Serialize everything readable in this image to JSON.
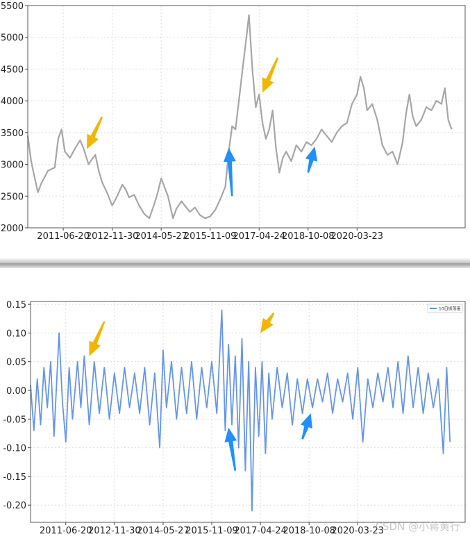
{
  "colors": {
    "top_line": "#a6a6a6",
    "bottom_line": "#6495ed",
    "arrow_orange": "#f5b400",
    "arrow_blue": "#1e90ff",
    "grid": "#dcdcdc"
  },
  "watermark": "CSDN @小蒋黄行",
  "chart_data": [
    {
      "type": "line",
      "x_tick_labels": [
        "2011-06-20",
        "2012-11-30",
        "2014-05-27",
        "2015-11-09",
        "2017-04-24",
        "2018-10-08",
        "2020-03-23"
      ],
      "ylim": [
        2000,
        5500
      ],
      "y_ticks": [
        2000,
        2500,
        3000,
        3500,
        4000,
        4500,
        5000,
        5500
      ],
      "grid": true,
      "series": [
        {
          "values": [
            [
              2010.0,
              3450
            ],
            [
              2010.1,
              3050
            ],
            [
              2010.2,
              2800
            ],
            [
              2010.3,
              2560
            ],
            [
              2010.4,
              2700
            ],
            [
              2010.6,
              2900
            ],
            [
              2010.8,
              2950
            ],
            [
              2010.9,
              3400
            ],
            [
              2011.0,
              3550
            ],
            [
              2011.1,
              3200
            ],
            [
              2011.25,
              3100
            ],
            [
              2011.4,
              3250
            ],
            [
              2011.55,
              3380
            ],
            [
              2011.65,
              3250
            ],
            [
              2011.8,
              3000
            ],
            [
              2011.9,
              3080
            ],
            [
              2012.0,
              3150
            ],
            [
              2012.1,
              2900
            ],
            [
              2012.2,
              2720
            ],
            [
              2012.35,
              2550
            ],
            [
              2012.5,
              2350
            ],
            [
              2012.65,
              2500
            ],
            [
              2012.8,
              2680
            ],
            [
              2012.9,
              2600
            ],
            [
              2013.0,
              2480
            ],
            [
              2013.15,
              2520
            ],
            [
              2013.3,
              2350
            ],
            [
              2013.45,
              2220
            ],
            [
              2013.6,
              2150
            ],
            [
              2013.75,
              2380
            ],
            [
              2013.85,
              2560
            ],
            [
              2013.95,
              2780
            ],
            [
              2014.05,
              2640
            ],
            [
              2014.15,
              2500
            ],
            [
              2014.3,
              2150
            ],
            [
              2014.4,
              2300
            ],
            [
              2014.55,
              2420
            ],
            [
              2014.65,
              2350
            ],
            [
              2014.8,
              2250
            ],
            [
              2014.95,
              2320
            ],
            [
              2015.1,
              2200
            ],
            [
              2015.25,
              2150
            ],
            [
              2015.4,
              2180
            ],
            [
              2015.55,
              2280
            ],
            [
              2015.7,
              2450
            ],
            [
              2015.85,
              2650
            ],
            [
              2015.95,
              3200
            ],
            [
              2016.05,
              3600
            ],
            [
              2016.15,
              3550
            ],
            [
              2016.25,
              4000
            ],
            [
              2016.35,
              4450
            ],
            [
              2016.45,
              4900
            ],
            [
              2016.55,
              5350
            ],
            [
              2016.65,
              4500
            ],
            [
              2016.75,
              3900
            ],
            [
              2016.85,
              4100
            ],
            [
              2016.95,
              3650
            ],
            [
              2017.05,
              3400
            ],
            [
              2017.15,
              3550
            ],
            [
              2017.25,
              3850
            ],
            [
              2017.35,
              3250
            ],
            [
              2017.45,
              2870
            ],
            [
              2017.55,
              3100
            ],
            [
              2017.65,
              3200
            ],
            [
              2017.8,
              3050
            ],
            [
              2017.95,
              3300
            ],
            [
              2018.1,
              3200
            ],
            [
              2018.25,
              3350
            ],
            [
              2018.4,
              3300
            ],
            [
              2018.55,
              3400
            ],
            [
              2018.7,
              3550
            ],
            [
              2018.85,
              3450
            ],
            [
              2019.0,
              3350
            ],
            [
              2019.15,
              3500
            ],
            [
              2019.3,
              3600
            ],
            [
              2019.45,
              3650
            ],
            [
              2019.6,
              3950
            ],
            [
              2019.75,
              4100
            ],
            [
              2019.85,
              4380
            ],
            [
              2019.95,
              4200
            ],
            [
              2020.05,
              3850
            ],
            [
              2020.2,
              3950
            ],
            [
              2020.35,
              3700
            ],
            [
              2020.5,
              3300
            ],
            [
              2020.65,
              3150
            ],
            [
              2020.8,
              3200
            ],
            [
              2020.95,
              3000
            ],
            [
              2021.1,
              3350
            ],
            [
              2021.2,
              3800
            ],
            [
              2021.3,
              4100
            ],
            [
              2021.4,
              3750
            ],
            [
              2021.5,
              3600
            ],
            [
              2021.65,
              3700
            ],
            [
              2021.8,
              3900
            ],
            [
              2021.95,
              3850
            ],
            [
              2022.1,
              4000
            ],
            [
              2022.25,
              3950
            ],
            [
              2022.35,
              4200
            ],
            [
              2022.45,
              3700
            ],
            [
              2022.55,
              3550
            ]
          ]
        }
      ],
      "annotations": [
        {
          "type": "arrow",
          "color": "orange",
          "from": [
            2012.2,
            3750
          ],
          "to": [
            2011.75,
            3240
          ]
        },
        {
          "type": "arrow",
          "color": "orange",
          "from": [
            2017.4,
            4680
          ],
          "to": [
            2016.95,
            4130
          ]
        },
        {
          "type": "arrow",
          "color": "blue",
          "from": [
            2016.05,
            2500
          ],
          "to": [
            2015.95,
            3260
          ]
        },
        {
          "type": "arrow",
          "color": "blue",
          "from": [
            2018.3,
            2870
          ],
          "to": [
            2018.5,
            3280
          ]
        }
      ]
    },
    {
      "type": "line",
      "x_tick_labels": [
        "2011-06-20",
        "2012-11-30",
        "2014-05-27",
        "2015-11-09",
        "2017-04-24",
        "2018-10-08",
        "2020-03-23"
      ],
      "ylim": [
        -0.23,
        0.155
      ],
      "y_ticks": [
        -0.2,
        -0.15,
        -0.1,
        -0.05,
        0.0,
        0.05,
        0.1,
        0.15
      ],
      "grid": true,
      "legend": {
        "position": "top-right",
        "entries": [
          "10日振荡度"
        ]
      },
      "series": [
        {
          "name": "10日振荡度",
          "values": [
            [
              2010.0,
              0.01
            ],
            [
              2010.1,
              -0.07
            ],
            [
              2010.2,
              0.02
            ],
            [
              2010.3,
              -0.06
            ],
            [
              2010.4,
              0.04
            ],
            [
              2010.5,
              -0.03
            ],
            [
              2010.6,
              0.05
            ],
            [
              2010.7,
              -0.08
            ],
            [
              2010.85,
              0.1
            ],
            [
              2010.95,
              -0.02
            ],
            [
              2011.05,
              -0.09
            ],
            [
              2011.15,
              0.04
            ],
            [
              2011.25,
              -0.05
            ],
            [
              2011.4,
              0.05
            ],
            [
              2011.5,
              -0.03
            ],
            [
              2011.6,
              0.06
            ],
            [
              2011.75,
              -0.06
            ],
            [
              2011.9,
              0.05
            ],
            [
              2012.05,
              -0.04
            ],
            [
              2012.2,
              0.04
            ],
            [
              2012.35,
              -0.05
            ],
            [
              2012.5,
              0.03
            ],
            [
              2012.65,
              -0.04
            ],
            [
              2012.8,
              0.04
            ],
            [
              2012.95,
              -0.03
            ],
            [
              2013.1,
              0.03
            ],
            [
              2013.25,
              -0.04
            ],
            [
              2013.4,
              0.04
            ],
            [
              2013.55,
              -0.06
            ],
            [
              2013.7,
              0.03
            ],
            [
              2013.85,
              -0.1
            ],
            [
              2013.95,
              0.07
            ],
            [
              2014.05,
              -0.03
            ],
            [
              2014.2,
              0.05
            ],
            [
              2014.35,
              -0.05
            ],
            [
              2014.5,
              0.04
            ],
            [
              2014.65,
              -0.04
            ],
            [
              2014.8,
              0.05
            ],
            [
              2014.95,
              -0.05
            ],
            [
              2015.1,
              0.04
            ],
            [
              2015.25,
              -0.03
            ],
            [
              2015.4,
              0.05
            ],
            [
              2015.55,
              -0.04
            ],
            [
              2015.7,
              0.14
            ],
            [
              2015.8,
              -0.07
            ],
            [
              2015.9,
              0.08
            ],
            [
              2016.0,
              -0.06
            ],
            [
              2016.1,
              0.06
            ],
            [
              2016.2,
              -0.1
            ],
            [
              2016.3,
              0.09
            ],
            [
              2016.4,
              -0.14
            ],
            [
              2016.5,
              0.05
            ],
            [
              2016.6,
              -0.21
            ],
            [
              2016.7,
              0.04
            ],
            [
              2016.8,
              -0.08
            ],
            [
              2016.9,
              0.05
            ],
            [
              2017.0,
              -0.11
            ],
            [
              2017.1,
              0.03
            ],
            [
              2017.2,
              -0.05
            ],
            [
              2017.35,
              0.04
            ],
            [
              2017.5,
              -0.03
            ],
            [
              2017.65,
              0.03
            ],
            [
              2017.8,
              -0.06
            ],
            [
              2017.95,
              0.02
            ],
            [
              2018.1,
              -0.04
            ],
            [
              2018.25,
              0.02
            ],
            [
              2018.4,
              -0.03
            ],
            [
              2018.55,
              0.02
            ],
            [
              2018.7,
              -0.02
            ],
            [
              2018.85,
              0.03
            ],
            [
              2019.0,
              -0.04
            ],
            [
              2019.15,
              0.02
            ],
            [
              2019.3,
              -0.02
            ],
            [
              2019.45,
              0.03
            ],
            [
              2019.6,
              -0.05
            ],
            [
              2019.75,
              0.04
            ],
            [
              2019.9,
              -0.09
            ],
            [
              2020.05,
              0.02
            ],
            [
              2020.2,
              -0.03
            ],
            [
              2020.35,
              0.03
            ],
            [
              2020.5,
              -0.02
            ],
            [
              2020.65,
              0.04
            ],
            [
              2020.8,
              -0.03
            ],
            [
              2020.95,
              0.05
            ],
            [
              2021.1,
              -0.04
            ],
            [
              2021.25,
              0.06
            ],
            [
              2021.4,
              -0.03
            ],
            [
              2021.55,
              0.04
            ],
            [
              2021.7,
              -0.04
            ],
            [
              2021.85,
              0.03
            ],
            [
              2022.0,
              -0.03
            ],
            [
              2022.15,
              0.02
            ],
            [
              2022.3,
              -0.11
            ],
            [
              2022.4,
              0.04
            ],
            [
              2022.5,
              -0.09
            ]
          ]
        }
      ],
      "annotations": [
        {
          "type": "arrow",
          "color": "orange",
          "from": [
            2012.2,
            0.12
          ],
          "to": [
            2011.75,
            0.06
          ]
        },
        {
          "type": "arrow",
          "color": "orange",
          "from": [
            2017.25,
            0.135
          ],
          "to": [
            2016.85,
            0.1
          ]
        },
        {
          "type": "arrow",
          "color": "blue",
          "from": [
            2016.1,
            -0.14
          ],
          "to": [
            2015.9,
            -0.065
          ]
        },
        {
          "type": "arrow",
          "color": "blue",
          "from": [
            2018.1,
            -0.085
          ],
          "to": [
            2018.35,
            -0.04
          ]
        }
      ]
    }
  ]
}
